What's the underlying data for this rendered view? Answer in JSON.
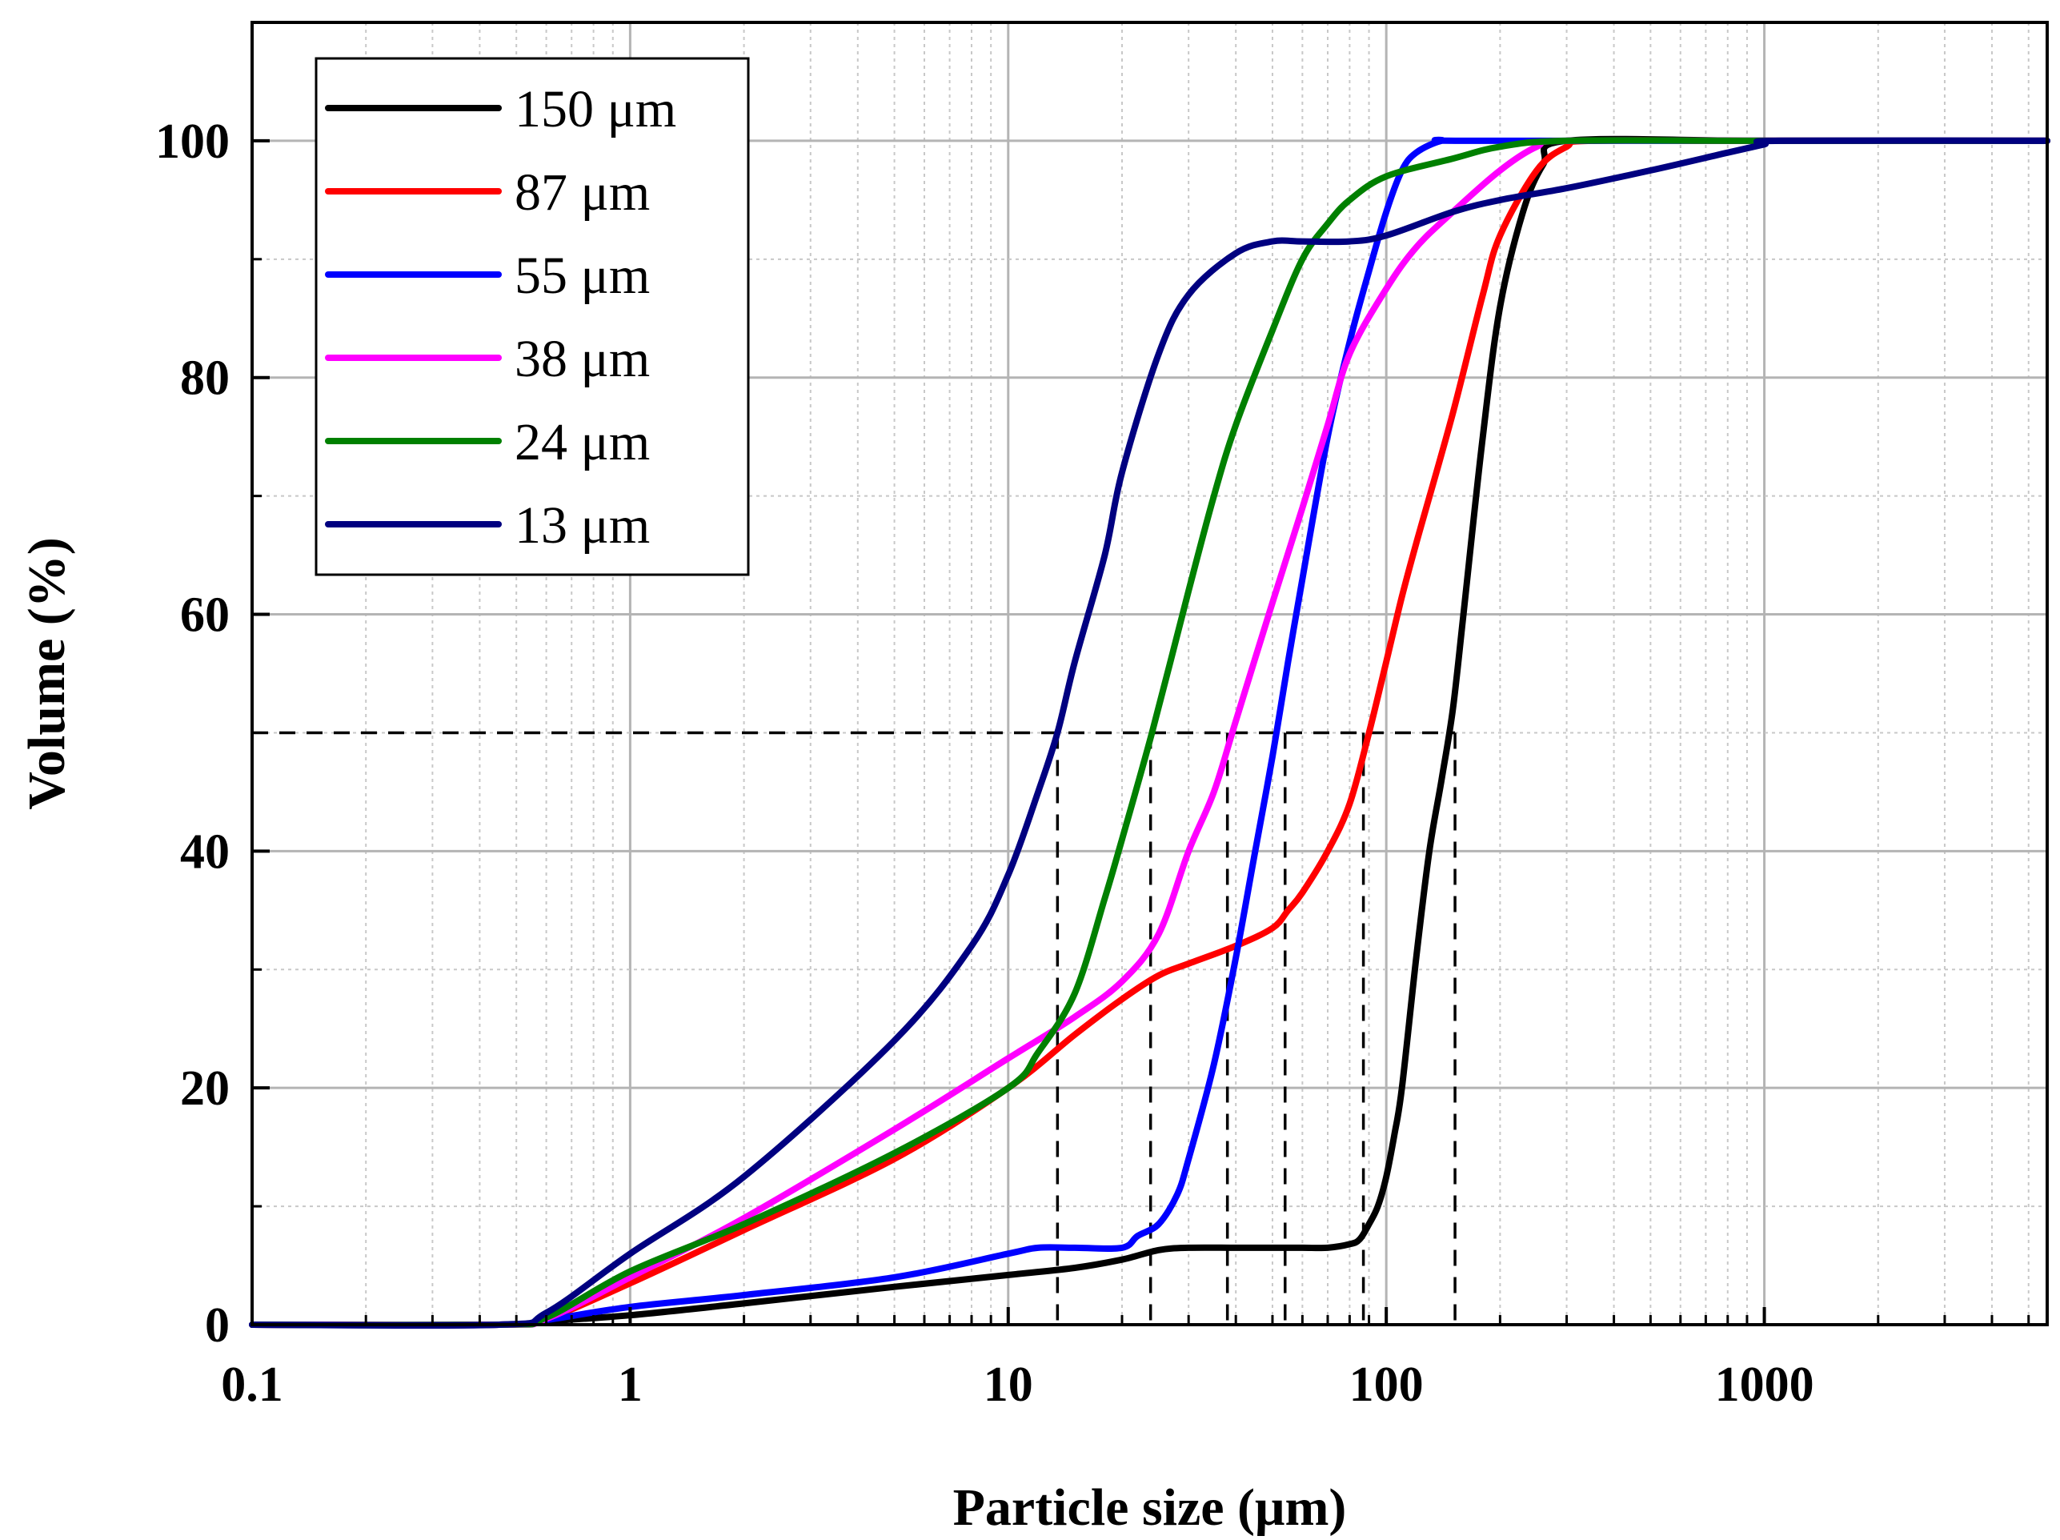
{
  "chart_data": {
    "type": "line",
    "title": "",
    "xlabel": "Particle size (μm)",
    "ylabel": "Volume (%)",
    "xscale": "log",
    "xlim": [
      0.1,
      5600
    ],
    "ylim": [
      0,
      110
    ],
    "x_ticks": [
      0.1,
      1,
      10,
      100,
      1000
    ],
    "x_tick_labels": [
      "0.1",
      "1",
      "10",
      "100",
      "1000"
    ],
    "y_ticks": [
      0,
      20,
      40,
      60,
      80,
      100
    ],
    "y_tick_labels": [
      "0",
      "20",
      "40",
      "60",
      "80",
      "100"
    ],
    "grid": true,
    "legend_position": "top-left",
    "reference_level": 50,
    "d50_markers": [
      13.5,
      23.8,
      38,
      54,
      87,
      152
    ],
    "series": [
      {
        "name": "150 μm",
        "color": "#000000",
        "x": [
          0.1,
          0.45,
          0.6,
          1,
          2,
          5,
          10,
          15,
          20,
          25,
          30,
          40,
          50,
          60,
          70,
          80,
          85,
          90,
          95,
          100,
          105,
          110,
          120,
          130,
          140,
          150,
          160,
          180,
          200,
          230,
          260,
          300,
          1000,
          5600
        ],
        "y": [
          0,
          0,
          0.3,
          0.8,
          1.8,
          3.2,
          4.2,
          4.8,
          5.5,
          6.3,
          6.5,
          6.5,
          6.5,
          6.5,
          6.5,
          6.8,
          7.2,
          8.5,
          10,
          12.5,
          16,
          20,
          31,
          40,
          46,
          52,
          60,
          75,
          86,
          94,
          98,
          100,
          100,
          100
        ]
      },
      {
        "name": "87 μm",
        "color": "#ff0000",
        "x": [
          0.1,
          0.45,
          0.6,
          1,
          2,
          5,
          10,
          15,
          20,
          25,
          30,
          40,
          50,
          55,
          60,
          70,
          80,
          90,
          100,
          110,
          120,
          150,
          180,
          200,
          250,
          300,
          350,
          1000,
          5600
        ],
        "y": [
          0,
          0,
          0.5,
          3.5,
          8,
          14,
          20,
          24.5,
          27.5,
          29.5,
          30.5,
          32,
          33.5,
          35,
          36.5,
          40,
          44,
          50,
          56,
          61.5,
          66,
          77,
          87,
          92,
          97.5,
          99.5,
          100,
          100,
          100
        ]
      },
      {
        "name": "55 μm",
        "color": "#0000ff",
        "x": [
          0.1,
          0.45,
          0.6,
          1,
          2,
          5,
          10,
          12,
          15,
          20,
          22,
          25,
          28,
          30,
          35,
          40,
          45,
          50,
          55,
          60,
          70,
          80,
          90,
          100,
          110,
          120,
          140,
          160,
          1000,
          5600
        ],
        "y": [
          0,
          0,
          0.4,
          1.5,
          2.5,
          4,
          6,
          6.5,
          6.5,
          6.5,
          7.5,
          8.5,
          11,
          14,
          22,
          31,
          40,
          48,
          56,
          63,
          75,
          83,
          89,
          94,
          97.5,
          99,
          100,
          100,
          100,
          100
        ]
      },
      {
        "name": "38 μm",
        "color": "#ff00ff",
        "x": [
          0.1,
          0.45,
          0.6,
          1,
          2,
          5,
          10,
          15,
          20,
          25,
          30,
          35,
          40,
          50,
          60,
          70,
          80,
          100,
          120,
          150,
          200,
          250,
          300,
          1000,
          5600
        ],
        "y": [
          0,
          0,
          0.5,
          4,
          9,
          16.5,
          22.5,
          26,
          29,
          33,
          40,
          45,
          51,
          61,
          69,
          76,
          82,
          87.5,
          91,
          94,
          97.5,
          99.5,
          100,
          100,
          100
        ]
      },
      {
        "name": "24 μm",
        "color": "#008000",
        "x": [
          0.1,
          0.45,
          0.6,
          1,
          2,
          5,
          10,
          12,
          15,
          18,
          20,
          24,
          30,
          35,
          40,
          50,
          60,
          70,
          80,
          100,
          150,
          200,
          300,
          1000,
          5600
        ],
        "y": [
          0,
          0,
          0.6,
          4.5,
          8.5,
          14.5,
          20,
          23,
          28,
          36,
          41,
          50,
          62,
          70,
          76,
          84,
          90,
          93,
          95,
          97,
          98.5,
          99.5,
          100,
          100,
          100
        ]
      },
      {
        "name": "13 μm",
        "color": "#000080",
        "x": [
          0.1,
          0.45,
          0.6,
          1,
          2,
          5,
          8,
          10,
          12,
          13.5,
          15,
          18,
          20,
          25,
          30,
          40,
          50,
          60,
          80,
          100,
          150,
          200,
          300,
          500,
          800,
          1000,
          1100,
          5600
        ],
        "y": [
          0,
          0,
          1,
          6,
          12.5,
          24,
          32,
          38,
          45,
          50,
          56,
          65,
          72,
          82,
          87,
          90.5,
          91.5,
          91.5,
          91.5,
          92,
          94,
          95,
          96,
          97.5,
          99,
          99.7,
          100,
          100
        ]
      }
    ]
  }
}
